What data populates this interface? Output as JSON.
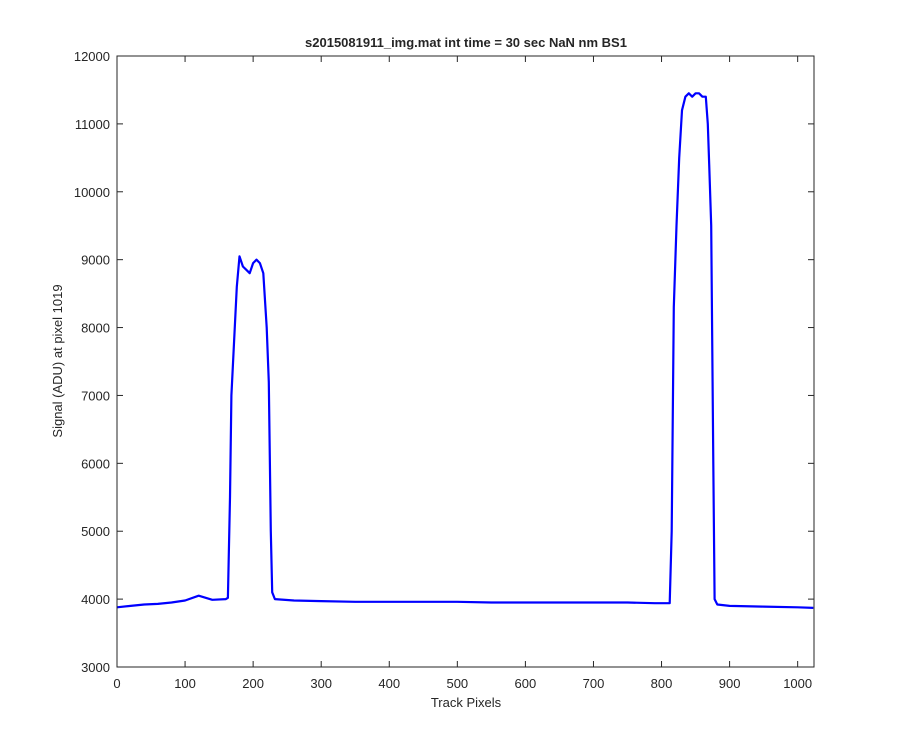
{
  "chart_data": {
    "type": "line",
    "title": "s2015081911_img.mat int time = 30 sec  NaN nm BS1",
    "xlabel": "Track Pixels",
    "ylabel": "Signal (ADU) at pixel 1019",
    "xlim": [
      0,
      1024
    ],
    "ylim": [
      3000,
      12000
    ],
    "xticks": [
      0,
      100,
      200,
      300,
      400,
      500,
      600,
      700,
      800,
      900,
      1000
    ],
    "yticks": [
      3000,
      4000,
      5000,
      6000,
      7000,
      8000,
      9000,
      10000,
      11000,
      12000
    ],
    "grid": false,
    "legend": "none",
    "series": [
      {
        "color": "#0000ff",
        "points": [
          [
            0,
            3880
          ],
          [
            20,
            3900
          ],
          [
            40,
            3920
          ],
          [
            60,
            3930
          ],
          [
            80,
            3950
          ],
          [
            100,
            3980
          ],
          [
            120,
            4050
          ],
          [
            140,
            3990
          ],
          [
            160,
            4000
          ],
          [
            163,
            4020
          ],
          [
            166,
            5500
          ],
          [
            168,
            7000
          ],
          [
            172,
            7800
          ],
          [
            176,
            8600
          ],
          [
            180,
            9050
          ],
          [
            185,
            8900
          ],
          [
            190,
            8850
          ],
          [
            195,
            8800
          ],
          [
            200,
            8950
          ],
          [
            205,
            9000
          ],
          [
            210,
            8950
          ],
          [
            215,
            8800
          ],
          [
            220,
            8000
          ],
          [
            223,
            7200
          ],
          [
            226,
            5000
          ],
          [
            228,
            4100
          ],
          [
            232,
            4000
          ],
          [
            260,
            3980
          ],
          [
            300,
            3970
          ],
          [
            350,
            3960
          ],
          [
            400,
            3960
          ],
          [
            450,
            3960
          ],
          [
            500,
            3960
          ],
          [
            550,
            3950
          ],
          [
            600,
            3950
          ],
          [
            650,
            3950
          ],
          [
            700,
            3950
          ],
          [
            750,
            3950
          ],
          [
            790,
            3940
          ],
          [
            812,
            3940
          ],
          [
            815,
            5000
          ],
          [
            818,
            8300
          ],
          [
            822,
            9500
          ],
          [
            826,
            10500
          ],
          [
            830,
            11200
          ],
          [
            835,
            11400
          ],
          [
            840,
            11450
          ],
          [
            845,
            11400
          ],
          [
            850,
            11450
          ],
          [
            855,
            11450
          ],
          [
            860,
            11400
          ],
          [
            865,
            11400
          ],
          [
            868,
            11000
          ],
          [
            870,
            10400
          ],
          [
            873,
            9500
          ],
          [
            876,
            6000
          ],
          [
            878,
            4000
          ],
          [
            882,
            3920
          ],
          [
            900,
            3900
          ],
          [
            950,
            3890
          ],
          [
            1000,
            3880
          ],
          [
            1023,
            3870
          ]
        ]
      }
    ]
  }
}
